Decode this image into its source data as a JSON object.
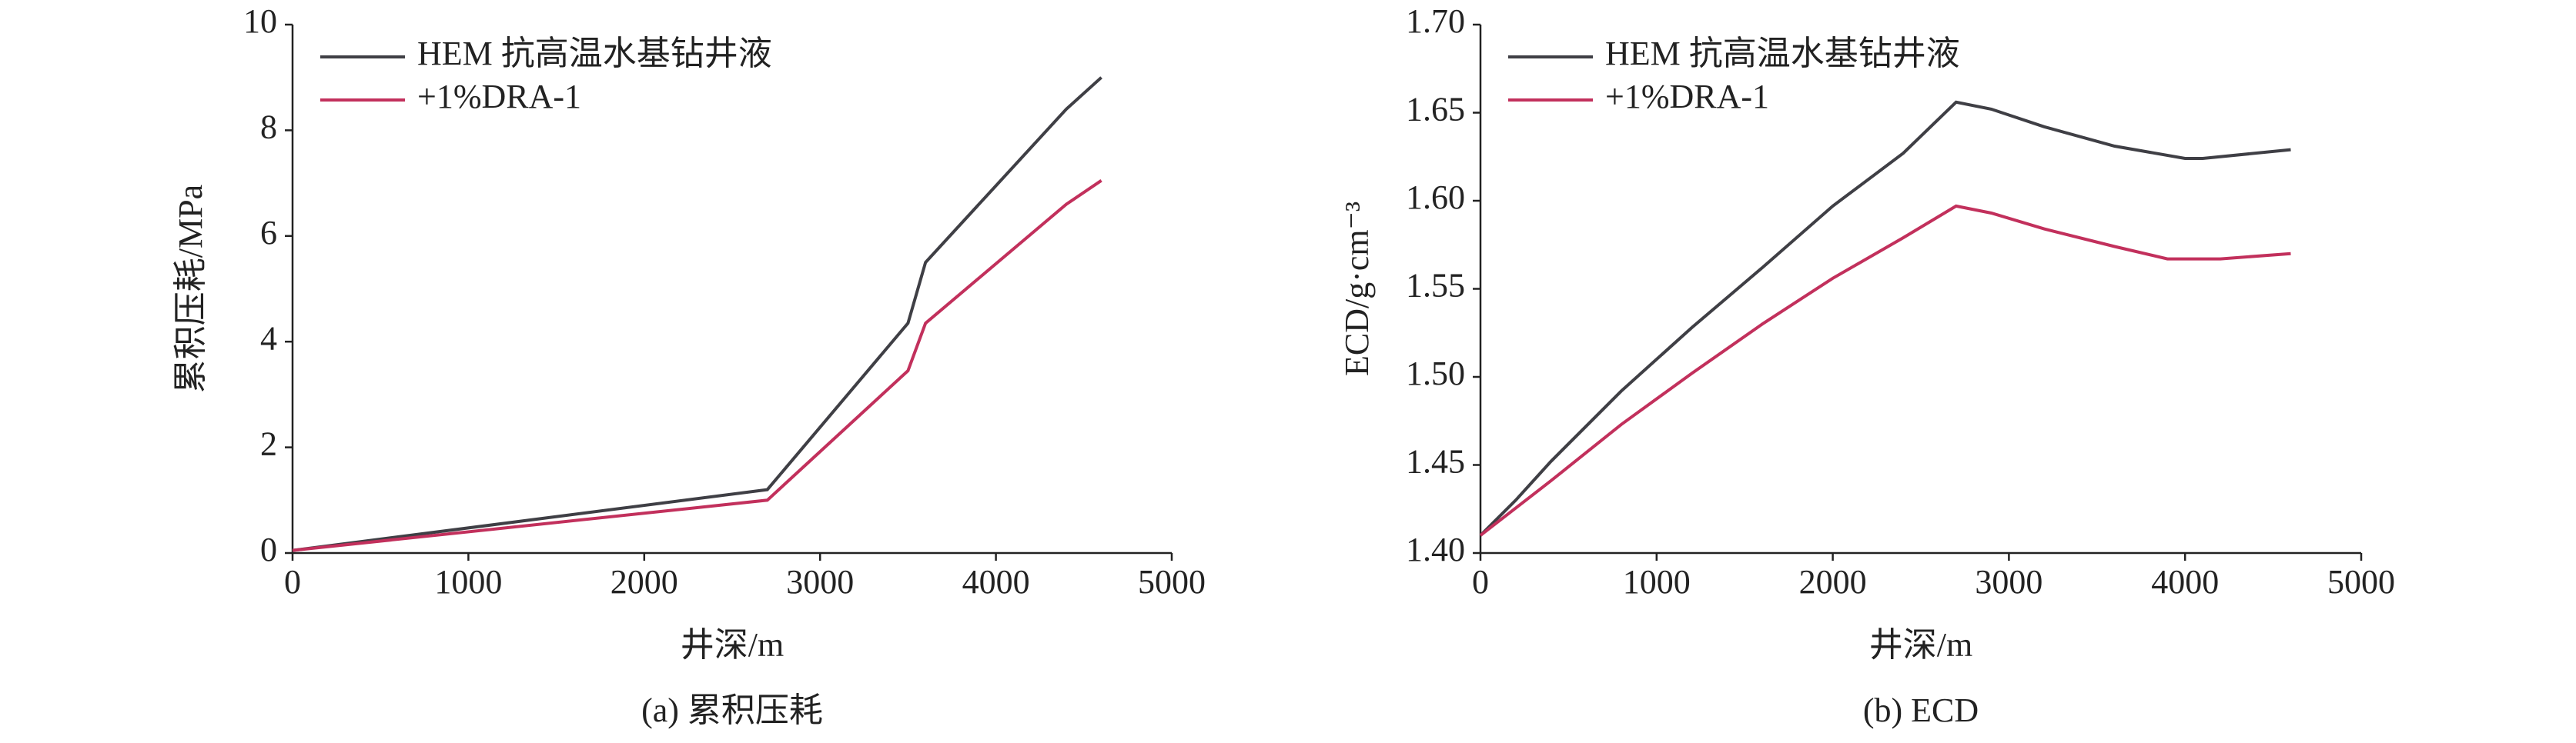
{
  "chart_data": [
    {
      "type": "line",
      "ylabel": "累积压耗/MPa",
      "xlabel": "井深/m",
      "caption": "(a) 累积压耗",
      "xlim": [
        0,
        5000
      ],
      "xticks": [
        0,
        1000,
        2000,
        3000,
        4000,
        5000
      ],
      "ylim": [
        0,
        10
      ],
      "yticks": [
        0,
        2,
        4,
        6,
        8,
        10
      ],
      "legend": "upper-left",
      "series": [
        {
          "name": "HEM 抗高温水基钻井液",
          "color": "#3f3f45",
          "x": [
            0,
            2700,
            3500,
            3600,
            4400,
            4600
          ],
          "values": [
            0.05,
            1.2,
            4.35,
            5.5,
            8.4,
            9.0
          ]
        },
        {
          "name": "+1%DRA-1",
          "color": "#c2305c",
          "x": [
            0,
            2700,
            3500,
            3600,
            4400,
            4600
          ],
          "values": [
            0.05,
            1.0,
            3.45,
            4.35,
            6.6,
            7.05
          ]
        }
      ]
    },
    {
      "type": "line",
      "ylabel": "ECD/g·cm⁻³",
      "xlabel": "井深/m",
      "caption": "(b) ECD",
      "xlim": [
        0,
        5000
      ],
      "xticks": [
        0,
        1000,
        2000,
        3000,
        4000,
        5000
      ],
      "ylim": [
        1.4,
        1.7
      ],
      "yticks": [
        {
          "value": 1.4,
          "label": "1.40"
        },
        1.45,
        {
          "value": 1.5,
          "label": "1.50"
        },
        1.55,
        {
          "value": 1.6,
          "label": "1.60"
        },
        1.65,
        {
          "value": 1.7,
          "label": "1.70"
        }
      ],
      "legend": "upper-left",
      "series": [
        {
          "name": "HEM 抗高温水基钻井液",
          "color": "#3f3f45",
          "x": [
            0,
            200,
            400,
            800,
            1200,
            1600,
            2000,
            2400,
            2700,
            2900,
            3200,
            3600,
            4000,
            4100,
            4600
          ],
          "values": [
            1.41,
            1.43,
            1.452,
            1.492,
            1.528,
            1.562,
            1.597,
            1.627,
            1.656,
            1.652,
            1.642,
            1.631,
            1.624,
            1.624,
            1.629
          ]
        },
        {
          "name": "+1%DRA-1",
          "color": "#c2305c",
          "x": [
            0,
            400,
            800,
            1200,
            1600,
            2000,
            2400,
            2700,
            2900,
            3200,
            3600,
            3900,
            4200,
            4600
          ],
          "values": [
            1.41,
            1.441,
            1.473,
            1.502,
            1.53,
            1.556,
            1.579,
            1.597,
            1.593,
            1.584,
            1.574,
            1.567,
            1.567,
            1.57
          ]
        }
      ]
    }
  ]
}
